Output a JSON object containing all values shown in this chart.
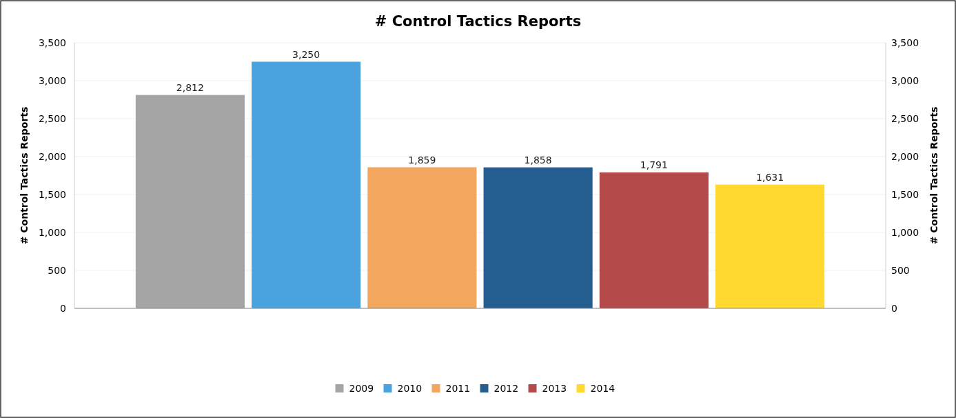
{
  "chart_data": {
    "type": "bar",
    "title": "# Control Tactics Reports",
    "ylabel": "# Control Tactics Reports",
    "y2label": "# Control Tactics Reports",
    "categories": [
      null
    ],
    "series": [
      {
        "name": "2009",
        "color": "#a5a5a5",
        "values": [
          2812
        ],
        "value_labels": [
          "2,812"
        ]
      },
      {
        "name": "2010",
        "color": "#4aa3df",
        "values": [
          3250
        ],
        "value_labels": [
          "3,250"
        ]
      },
      {
        "name": "2011",
        "color": "#f2a65e",
        "values": [
          1859
        ],
        "value_labels": [
          "1,859"
        ]
      },
      {
        "name": "2012",
        "color": "#255e91",
        "values": [
          1858
        ],
        "value_labels": [
          "1,858"
        ]
      },
      {
        "name": "2013",
        "color": "#b54a4a",
        "values": [
          1791
        ],
        "value_labels": [
          "1,791"
        ]
      },
      {
        "name": "2014",
        "color": "#ffd92f",
        "values": [
          1631
        ],
        "value_labels": [
          "1,631"
        ]
      }
    ],
    "ylim": [
      0,
      3500
    ],
    "yticks": [
      0,
      500,
      {
        "value": 1000,
        "label": "1,000"
      },
      {
        "value": 1500,
        "label": "1,500"
      },
      {
        "value": 2000,
        "label": "2,000"
      },
      {
        "value": 2500,
        "label": "2,500"
      },
      {
        "value": 3000,
        "label": "3,000"
      },
      {
        "value": 3500,
        "label": "3,500"
      }
    ],
    "y2lim": [
      0,
      3500
    ],
    "y2ticks": [
      0,
      500,
      {
        "value": 1000,
        "label": "1,000"
      },
      {
        "value": 1500,
        "label": "1,500"
      },
      {
        "value": 2000,
        "label": "2,000"
      },
      {
        "value": 2500,
        "label": "2,500"
      },
      {
        "value": 3000,
        "label": "3,000"
      },
      {
        "value": 3500,
        "label": "3,500"
      }
    ],
    "legend": "bottom",
    "grid": "y"
  }
}
